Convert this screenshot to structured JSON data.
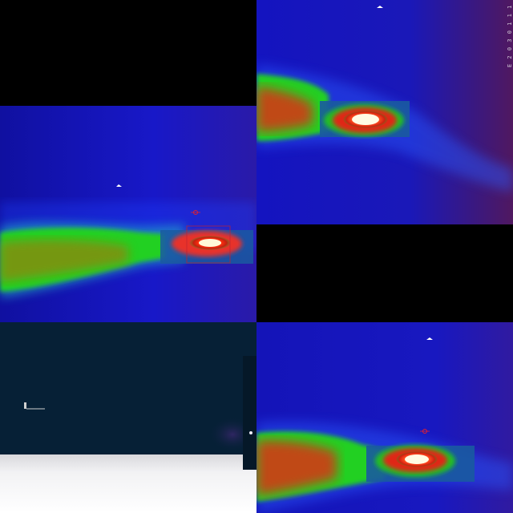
{
  "panels": [
    {
      "name": "thermal-panel-top-left",
      "kind": "thermal"
    },
    {
      "name": "thermal-panel-top-right",
      "kind": "thermal"
    },
    {
      "name": "dark-scene-panel-bottom-left",
      "kind": "visible"
    },
    {
      "name": "thermal-panel-bottom-right",
      "kind": "thermal"
    }
  ],
  "overlay_text": {
    "edge_caption": "E 2 0 3 0 1 1 1 1"
  },
  "colors": {
    "background_blue": "#1a1ad8",
    "deep_blue": "#0b0ba8",
    "green": "#1ad21a",
    "olive": "#7a7a10",
    "red": "#e02010",
    "hot_white": "#fff4c8",
    "dark_scene": "#062036",
    "floor_white": "#eeeef2"
  }
}
